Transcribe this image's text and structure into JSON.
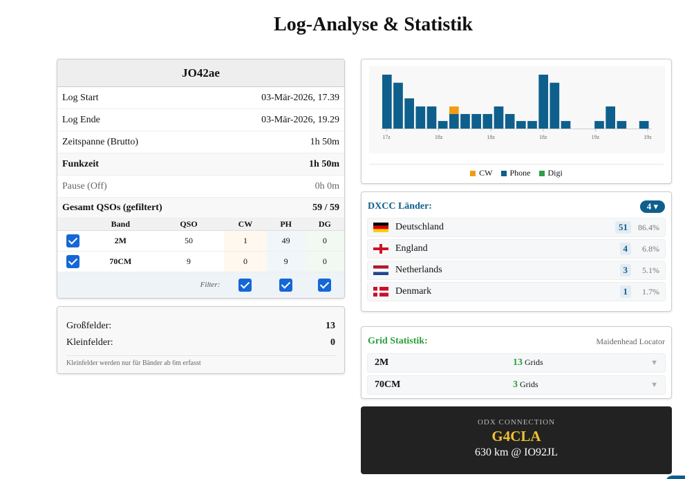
{
  "page": {
    "title": "Log-Analyse & Statistik"
  },
  "locator": {
    "title": "JO42ae",
    "rows": [
      {
        "label": "Log Start",
        "value": "03-Mär-2026, 17.39"
      },
      {
        "label": "Log Ende",
        "value": "03-Mär-2026, 19.29"
      },
      {
        "label": "Zeitspanne (Brutto)",
        "value": "1h 50m"
      },
      {
        "label": "Funkzeit",
        "value": "1h 50m"
      },
      {
        "label": "Pause (Off)",
        "value": "0h 0m"
      },
      {
        "label": "Gesamt QSOs (gefiltert)",
        "value": "59 / 59"
      }
    ],
    "table": {
      "headers": [
        "Band",
        "QSO",
        "CW",
        "PH",
        "DG"
      ],
      "rows": [
        {
          "band": "2M",
          "qso": "50",
          "cw": "1",
          "ph": "49",
          "dg": "0",
          "checked": true
        },
        {
          "band": "70CM",
          "qso": "9",
          "cw": "0",
          "ph": "9",
          "dg": "0",
          "checked": true
        }
      ],
      "filter_label": "Filter:"
    }
  },
  "fields": {
    "gross_label": "Großfelder:",
    "gross_value": "13",
    "klein_label": "Kleinfelder:",
    "klein_value": "0",
    "note": "Kleinfelder werden nur für Bänder ab 6m erfasst"
  },
  "chart_data": {
    "type": "bar",
    "x_tick_labels": [
      "17z",
      "18z",
      "18z",
      "18z",
      "19z",
      "19z"
    ],
    "series": [
      {
        "name": "Phone",
        "values": [
          10,
          8.5,
          5.6,
          4.1,
          4.1,
          1.4,
          2.7,
          2.7,
          2.7,
          2.7,
          4.1,
          2.7,
          1.4,
          1.4,
          10,
          8.5,
          1.4,
          0,
          0,
          1.4,
          4.1,
          1.4,
          0,
          1.4
        ]
      },
      {
        "name": "CW",
        "values": [
          0,
          0,
          0,
          0,
          0,
          0,
          1.4,
          0,
          0,
          0,
          0,
          0,
          0,
          0,
          0,
          0,
          0,
          0,
          0,
          0,
          0,
          0,
          0,
          0
        ]
      },
      {
        "name": "Digi",
        "values": [
          0,
          0,
          0,
          0,
          0,
          0,
          0,
          0,
          0,
          0,
          0,
          0,
          0,
          0,
          0,
          0,
          0,
          0,
          0,
          0,
          0,
          0,
          0,
          0
        ]
      }
    ],
    "colors": {
      "Phone": "#0e5f8c",
      "CW": "#f39c12",
      "Digi": "#2ea043"
    },
    "legend": [
      "CW",
      "Phone",
      "Digi"
    ],
    "legend_position": "bottom",
    "ylim": [
      0,
      10
    ],
    "grid": false
  },
  "dxcc": {
    "title": "DXCC Länder:",
    "count": "4 ▾",
    "countries": [
      {
        "name": "Deutschland",
        "count": "51",
        "pct": "86.4%",
        "flag": "de"
      },
      {
        "name": "England",
        "count": "4",
        "pct": "6.8%",
        "flag": "en"
      },
      {
        "name": "Netherlands",
        "count": "3",
        "pct": "5.1%",
        "flag": "nl"
      },
      {
        "name": "Denmark",
        "count": "1",
        "pct": "1.7%",
        "flag": "dk"
      }
    ]
  },
  "grid": {
    "title": "Grid Statistik:",
    "subtitle": "Maidenhead Locator",
    "unit": "Grids",
    "rows": [
      {
        "band": "2M",
        "count": "13"
      },
      {
        "band": "70CM",
        "count": "3"
      }
    ]
  },
  "odx": {
    "label": "ODX CONNECTION",
    "call": "G4CLA",
    "distance": "630 km @ IO92JL"
  }
}
